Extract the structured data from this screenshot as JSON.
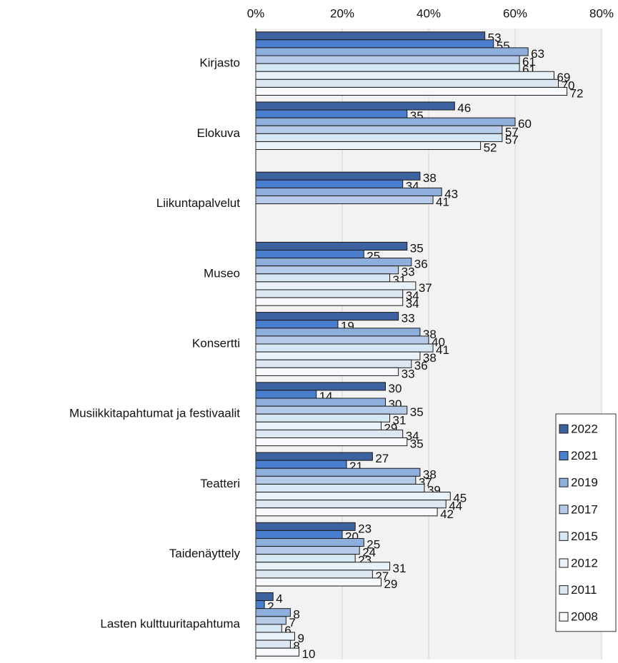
{
  "chart_data": {
    "type": "bar",
    "orientation": "horizontal",
    "categories": [
      "Kirjasto",
      "Elokuva",
      "Liikuntapalvelut",
      "Museo",
      "Konsertti",
      "Musiikkitapahtumat ja festivaalit",
      "Teatteri",
      "Taidenäyttely",
      "Lasten kulttuuritapahtuma"
    ],
    "series": [
      {
        "name": "2022",
        "color": "#3d62a0",
        "values": [
          53,
          46,
          38,
          35,
          33,
          30,
          27,
          23,
          4
        ]
      },
      {
        "name": "2021",
        "color": "#4a7fd0",
        "values": [
          55,
          35,
          34,
          25,
          19,
          14,
          21,
          20,
          2
        ]
      },
      {
        "name": "2019",
        "color": "#8eaedc",
        "values": [
          63,
          60,
          43,
          36,
          38,
          30,
          38,
          25,
          8
        ]
      },
      {
        "name": "2017",
        "color": "#b6cbe8",
        "values": [
          61,
          57,
          41,
          33,
          40,
          35,
          37,
          24,
          7
        ]
      },
      {
        "name": "2015",
        "color": "#d6e8f4",
        "values": [
          61,
          57,
          null,
          31,
          41,
          31,
          39,
          23,
          6
        ]
      },
      {
        "name": "2012",
        "color": "#eaf2f9",
        "values": [
          69,
          52,
          null,
          37,
          38,
          29,
          45,
          31,
          9
        ]
      },
      {
        "name": "2011",
        "color": "#dde7f3",
        "values": [
          70,
          null,
          null,
          34,
          36,
          34,
          44,
          27,
          8
        ]
      },
      {
        "name": "2008",
        "color": "#f7f9fc",
        "values": [
          72,
          null,
          null,
          34,
          33,
          35,
          42,
          29,
          10
        ]
      }
    ],
    "xlim": [
      0,
      80
    ],
    "xticks": [
      {
        "value": 0,
        "label": "0%"
      },
      {
        "value": 20,
        "label": "20%"
      },
      {
        "value": 40,
        "label": "40%"
      },
      {
        "value": 60,
        "label": "60%"
      },
      {
        "value": 80,
        "label": "80%"
      }
    ],
    "grid": true,
    "legend": "lower right"
  }
}
